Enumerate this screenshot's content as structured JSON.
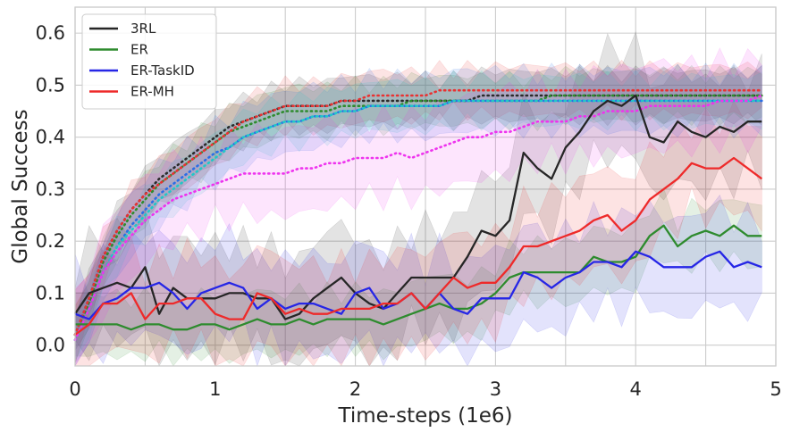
{
  "chart_data": {
    "type": "line",
    "xlabel": "Time-steps (1e6)",
    "ylabel": "Global Success",
    "xlim": [
      0,
      5
    ],
    "ylim": [
      -0.04,
      0.65
    ],
    "xticks": [
      0,
      1,
      2,
      3,
      4,
      5
    ],
    "yticks": [
      0.0,
      0.1,
      0.2,
      0.3,
      0.4,
      0.5,
      0.6
    ],
    "grid": true,
    "legend_position": "top-left",
    "x": [
      0,
      0.1,
      0.2,
      0.3,
      0.4,
      0.5,
      0.6,
      0.7,
      0.8,
      0.9,
      1.0,
      1.1,
      1.2,
      1.3,
      1.4,
      1.5,
      1.6,
      1.7,
      1.8,
      1.9,
      2.0,
      2.1,
      2.2,
      2.3,
      2.4,
      2.5,
      2.6,
      2.7,
      2.8,
      2.9,
      3.0,
      3.1,
      3.2,
      3.3,
      3.4,
      3.5,
      3.6,
      3.7,
      3.8,
      3.9,
      4.0,
      4.1,
      4.2,
      4.3,
      4.4,
      4.5,
      4.6,
      4.7,
      4.8,
      4.9
    ],
    "series": [
      {
        "name": "3RL",
        "color": "#262626",
        "style": "solid",
        "in_legend": true,
        "values": [
          0.06,
          0.1,
          0.11,
          0.12,
          0.11,
          0.15,
          0.06,
          0.11,
          0.09,
          0.09,
          0.09,
          0.1,
          0.1,
          0.09,
          0.09,
          0.05,
          0.06,
          0.09,
          0.11,
          0.13,
          0.1,
          0.08,
          0.07,
          0.1,
          0.13,
          0.13,
          0.13,
          0.13,
          0.17,
          0.22,
          0.21,
          0.24,
          0.37,
          0.34,
          0.32,
          0.38,
          0.41,
          0.45,
          0.47,
          0.46,
          0.48,
          0.4,
          0.39,
          0.43,
          0.41,
          0.4,
          0.42,
          0.41,
          0.43,
          0.43
        ],
        "band": 0.09
      },
      {
        "name": "ER",
        "color": "#2e8b2e",
        "style": "solid",
        "in_legend": true,
        "values": [
          0.04,
          0.04,
          0.04,
          0.04,
          0.03,
          0.04,
          0.04,
          0.03,
          0.03,
          0.04,
          0.04,
          0.03,
          0.04,
          0.05,
          0.04,
          0.04,
          0.05,
          0.04,
          0.05,
          0.05,
          0.05,
          0.05,
          0.04,
          0.05,
          0.06,
          0.07,
          0.08,
          0.07,
          0.07,
          0.08,
          0.1,
          0.13,
          0.14,
          0.14,
          0.14,
          0.14,
          0.14,
          0.17,
          0.16,
          0.16,
          0.17,
          0.21,
          0.23,
          0.19,
          0.21,
          0.22,
          0.21,
          0.23,
          0.21,
          0.21
        ],
        "band": 0.05
      },
      {
        "name": "ER-TaskID",
        "color": "#2626e6",
        "style": "solid",
        "in_legend": true,
        "values": [
          0.06,
          0.05,
          0.08,
          0.09,
          0.11,
          0.11,
          0.12,
          0.1,
          0.07,
          0.1,
          0.11,
          0.12,
          0.11,
          0.07,
          0.09,
          0.07,
          0.08,
          0.08,
          0.07,
          0.06,
          0.1,
          0.11,
          0.07,
          0.08,
          0.1,
          0.07,
          0.1,
          0.07,
          0.06,
          0.09,
          0.09,
          0.09,
          0.14,
          0.13,
          0.11,
          0.13,
          0.14,
          0.16,
          0.16,
          0.15,
          0.18,
          0.17,
          0.15,
          0.15,
          0.15,
          0.17,
          0.18,
          0.15,
          0.16,
          0.15
        ],
        "band": 0.08
      },
      {
        "name": "ER-MH",
        "color": "#ee2a2a",
        "style": "solid",
        "in_legend": true,
        "values": [
          0.02,
          0.04,
          0.08,
          0.08,
          0.1,
          0.05,
          0.08,
          0.08,
          0.09,
          0.09,
          0.06,
          0.05,
          0.05,
          0.1,
          0.09,
          0.06,
          0.07,
          0.06,
          0.06,
          0.07,
          0.07,
          0.07,
          0.08,
          0.08,
          0.1,
          0.07,
          0.1,
          0.13,
          0.11,
          0.12,
          0.12,
          0.15,
          0.19,
          0.19,
          0.2,
          0.21,
          0.22,
          0.24,
          0.25,
          0.22,
          0.24,
          0.28,
          0.3,
          0.32,
          0.35,
          0.34,
          0.34,
          0.36,
          0.34,
          0.32
        ],
        "band": 0.08
      },
      {
        "color": "#2a2a2a",
        "style": "dotted",
        "in_legend": false,
        "values": [
          0.02,
          0.09,
          0.17,
          0.22,
          0.26,
          0.29,
          0.32,
          0.34,
          0.36,
          0.38,
          0.4,
          0.42,
          0.43,
          0.44,
          0.45,
          0.46,
          0.46,
          0.46,
          0.46,
          0.47,
          0.47,
          0.47,
          0.47,
          0.47,
          0.47,
          0.47,
          0.47,
          0.47,
          0.47,
          0.48,
          0.48,
          0.48,
          0.48,
          0.48,
          0.48,
          0.48,
          0.48,
          0.48,
          0.48,
          0.48,
          0.48,
          0.48,
          0.48,
          0.48,
          0.48,
          0.48,
          0.48,
          0.48,
          0.48,
          0.48
        ],
        "band": 0.04
      },
      {
        "color": "#2e8b2e",
        "style": "dotted",
        "in_legend": false,
        "values": [
          0.02,
          0.08,
          0.16,
          0.21,
          0.25,
          0.28,
          0.31,
          0.33,
          0.35,
          0.37,
          0.39,
          0.41,
          0.42,
          0.43,
          0.44,
          0.45,
          0.45,
          0.45,
          0.45,
          0.46,
          0.46,
          0.46,
          0.46,
          0.46,
          0.47,
          0.47,
          0.47,
          0.47,
          0.47,
          0.47,
          0.47,
          0.47,
          0.47,
          0.47,
          0.48,
          0.48,
          0.48,
          0.48,
          0.48,
          0.48,
          0.48,
          0.48,
          0.48,
          0.48,
          0.48,
          0.48,
          0.48,
          0.48,
          0.48,
          0.48
        ],
        "band": 0.04
      },
      {
        "color": "#e83232",
        "style": "dotted",
        "in_legend": false,
        "values": [
          0.02,
          0.09,
          0.17,
          0.22,
          0.26,
          0.29,
          0.31,
          0.33,
          0.35,
          0.37,
          0.39,
          0.41,
          0.43,
          0.44,
          0.45,
          0.46,
          0.46,
          0.46,
          0.46,
          0.47,
          0.47,
          0.48,
          0.48,
          0.48,
          0.48,
          0.48,
          0.49,
          0.49,
          0.49,
          0.49,
          0.49,
          0.49,
          0.49,
          0.49,
          0.49,
          0.49,
          0.49,
          0.49,
          0.49,
          0.49,
          0.49,
          0.49,
          0.49,
          0.49,
          0.49,
          0.49,
          0.49,
          0.49,
          0.49,
          0.49
        ],
        "band": 0.04
      },
      {
        "color": "#2a6ee6",
        "style": "dotted",
        "in_legend": false,
        "values": [
          0.01,
          0.07,
          0.14,
          0.19,
          0.23,
          0.26,
          0.29,
          0.31,
          0.33,
          0.35,
          0.37,
          0.38,
          0.4,
          0.41,
          0.42,
          0.43,
          0.43,
          0.44,
          0.44,
          0.45,
          0.45,
          0.46,
          0.46,
          0.46,
          0.46,
          0.46,
          0.46,
          0.47,
          0.47,
          0.47,
          0.47,
          0.47,
          0.47,
          0.47,
          0.47,
          0.47,
          0.47,
          0.47,
          0.47,
          0.47,
          0.47,
          0.47,
          0.47,
          0.47,
          0.47,
          0.47,
          0.47,
          0.47,
          0.47,
          0.47
        ],
        "band": 0.05
      },
      {
        "color": "#20c8c8",
        "style": "dotted",
        "in_legend": false,
        "values": [
          0.01,
          0.07,
          0.14,
          0.19,
          0.22,
          0.25,
          0.28,
          0.3,
          0.32,
          0.34,
          0.36,
          0.38,
          0.4,
          0.41,
          0.42,
          0.43,
          0.43,
          0.44,
          0.44,
          0.45,
          0.45,
          0.46,
          0.46,
          0.46,
          0.46,
          0.46,
          0.46,
          0.47,
          0.47,
          0.47,
          0.47,
          0.47,
          0.47,
          0.47,
          0.47,
          0.47,
          0.47,
          0.47,
          0.47,
          0.47,
          0.47,
          0.47,
          0.47,
          0.47,
          0.47,
          0.47,
          0.47,
          0.47,
          0.47,
          0.47
        ],
        "band": 0.04
      },
      {
        "color": "#ee33ee",
        "style": "dotted",
        "in_legend": false,
        "values": [
          0.01,
          0.07,
          0.14,
          0.18,
          0.21,
          0.24,
          0.26,
          0.28,
          0.29,
          0.3,
          0.31,
          0.32,
          0.33,
          0.33,
          0.33,
          0.33,
          0.34,
          0.34,
          0.35,
          0.35,
          0.36,
          0.36,
          0.36,
          0.37,
          0.36,
          0.37,
          0.38,
          0.39,
          0.4,
          0.4,
          0.41,
          0.41,
          0.42,
          0.43,
          0.43,
          0.43,
          0.44,
          0.44,
          0.45,
          0.45,
          0.45,
          0.46,
          0.46,
          0.46,
          0.46,
          0.46,
          0.47,
          0.47,
          0.47,
          0.48
        ],
        "band": 0.07
      }
    ]
  }
}
